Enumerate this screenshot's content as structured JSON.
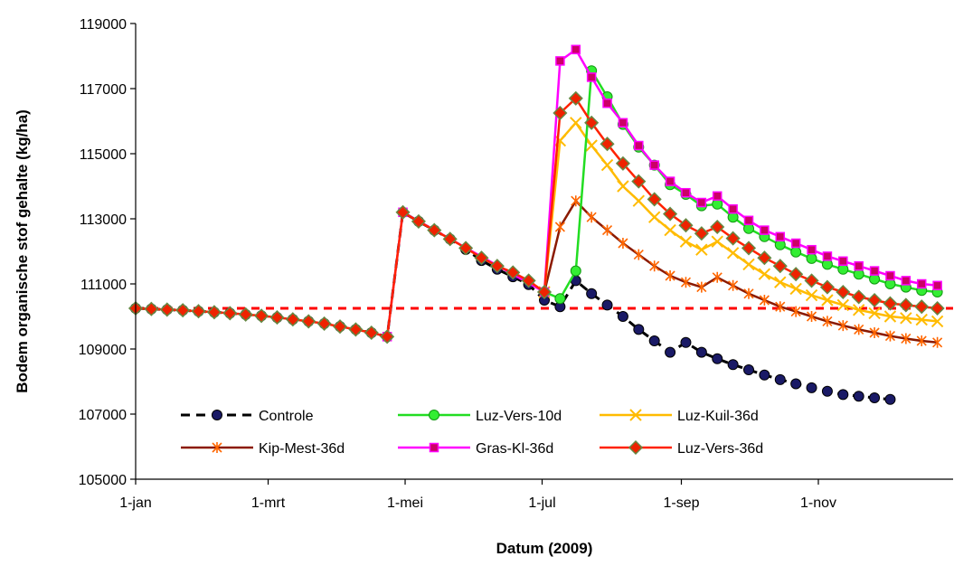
{
  "chart_data": {
    "type": "line",
    "title": "",
    "xlabel": "Datum (2009)",
    "ylabel": "Bodem organische stof gehalte (kg/ha)",
    "x_unit": "date",
    "xlim": [
      "2009-01-01",
      "2009-12-31"
    ],
    "ylim": [
      105000,
      119000
    ],
    "yticks": [
      105000,
      107000,
      109000,
      111000,
      113000,
      115000,
      117000,
      119000
    ],
    "xticks": [
      {
        "date": "2009-01-01",
        "label": "1-jan"
      },
      {
        "date": "2009-03-01",
        "label": "1-mrt"
      },
      {
        "date": "2009-05-01",
        "label": "1-mei"
      },
      {
        "date": "2009-07-01",
        "label": "1-jul"
      },
      {
        "date": "2009-09-01",
        "label": "1-sep"
      },
      {
        "date": "2009-11-01",
        "label": "1-nov"
      }
    ],
    "grid": false,
    "reference_line": {
      "y": 110250,
      "color": "#ff0000",
      "style": "dashed"
    },
    "legend_placement": "bottom-inside",
    "series": [
      {
        "name": "Controle",
        "color": "#000000",
        "marker": "circle",
        "marker_fill": "#1a1a66",
        "line": "dashed",
        "points": [
          [
            "2009-01-01",
            110250
          ],
          [
            "2009-01-08",
            110230
          ],
          [
            "2009-01-15",
            110210
          ],
          [
            "2009-01-22",
            110190
          ],
          [
            "2009-01-29",
            110160
          ],
          [
            "2009-02-05",
            110130
          ],
          [
            "2009-02-12",
            110100
          ],
          [
            "2009-02-19",
            110060
          ],
          [
            "2009-02-26",
            110020
          ],
          [
            "2009-03-05",
            109970
          ],
          [
            "2009-03-12",
            109910
          ],
          [
            "2009-03-19",
            109850
          ],
          [
            "2009-03-26",
            109780
          ],
          [
            "2009-04-02",
            109690
          ],
          [
            "2009-04-09",
            109600
          ],
          [
            "2009-04-16",
            109500
          ],
          [
            "2009-04-23",
            109380
          ],
          [
            "2009-04-30",
            113200
          ],
          [
            "2009-05-07",
            112920
          ],
          [
            "2009-05-14",
            112650
          ],
          [
            "2009-05-21",
            112380
          ],
          [
            "2009-05-28",
            112060
          ],
          [
            "2009-06-04",
            111720
          ],
          [
            "2009-06-11",
            111450
          ],
          [
            "2009-06-18",
            111220
          ],
          [
            "2009-06-25",
            110980
          ],
          [
            "2009-07-02",
            110500
          ],
          [
            "2009-07-09",
            110300
          ],
          [
            "2009-07-16",
            111100
          ],
          [
            "2009-07-23",
            110700
          ],
          [
            "2009-07-30",
            110350
          ],
          [
            "2009-08-06",
            110000
          ],
          [
            "2009-08-13",
            109600
          ],
          [
            "2009-08-20",
            109250
          ],
          [
            "2009-08-27",
            108900
          ],
          [
            "2009-09-03",
            109200
          ],
          [
            "2009-09-10",
            108900
          ],
          [
            "2009-09-17",
            108700
          ],
          [
            "2009-09-24",
            108520
          ],
          [
            "2009-10-01",
            108360
          ],
          [
            "2009-10-08",
            108200
          ],
          [
            "2009-10-15",
            108060
          ],
          [
            "2009-10-22",
            107930
          ],
          [
            "2009-10-29",
            107810
          ],
          [
            "2009-11-05",
            107700
          ],
          [
            "2009-11-12",
            107600
          ],
          [
            "2009-11-19",
            107550
          ],
          [
            "2009-11-26",
            107500
          ],
          [
            "2009-12-03",
            107450
          ]
        ]
      },
      {
        "name": "Luz-Vers-10d",
        "color": "#22dd22",
        "marker": "circle",
        "marker_fill": "#33ee33",
        "line": "solid",
        "points": [
          [
            "2009-07-02",
            110750
          ],
          [
            "2009-07-09",
            110550
          ],
          [
            "2009-07-16",
            111400
          ],
          [
            "2009-07-23",
            117550
          ],
          [
            "2009-07-30",
            116750
          ],
          [
            "2009-08-06",
            115900
          ],
          [
            "2009-08-13",
            115200
          ],
          [
            "2009-08-20",
            114650
          ],
          [
            "2009-08-27",
            114050
          ],
          [
            "2009-09-03",
            113750
          ],
          [
            "2009-09-10",
            113400
          ],
          [
            "2009-09-17",
            113450
          ],
          [
            "2009-09-24",
            113050
          ],
          [
            "2009-10-01",
            112700
          ],
          [
            "2009-10-08",
            112450
          ],
          [
            "2009-10-15",
            112200
          ],
          [
            "2009-10-22",
            111980
          ],
          [
            "2009-10-29",
            111780
          ],
          [
            "2009-11-05",
            111600
          ],
          [
            "2009-11-12",
            111450
          ],
          [
            "2009-11-19",
            111300
          ],
          [
            "2009-11-26",
            111150
          ],
          [
            "2009-12-03",
            111000
          ],
          [
            "2009-12-10",
            110900
          ],
          [
            "2009-12-17",
            110800
          ],
          [
            "2009-12-24",
            110750
          ]
        ]
      },
      {
        "name": "Luz-Kuil-36d",
        "color": "#ffbb00",
        "marker": "x",
        "marker_fill": "#ffbb00",
        "line": "solid",
        "points": [
          [
            "2009-07-02",
            110750
          ],
          [
            "2009-07-09",
            115400
          ],
          [
            "2009-07-16",
            115950
          ],
          [
            "2009-07-23",
            115250
          ],
          [
            "2009-07-30",
            114650
          ],
          [
            "2009-08-06",
            114000
          ],
          [
            "2009-08-13",
            113550
          ],
          [
            "2009-08-20",
            113050
          ],
          [
            "2009-08-27",
            112650
          ],
          [
            "2009-09-03",
            112300
          ],
          [
            "2009-09-10",
            112050
          ],
          [
            "2009-09-17",
            112300
          ],
          [
            "2009-09-24",
            111950
          ],
          [
            "2009-10-01",
            111600
          ],
          [
            "2009-10-08",
            111300
          ],
          [
            "2009-10-15",
            111050
          ],
          [
            "2009-10-22",
            110850
          ],
          [
            "2009-10-29",
            110650
          ],
          [
            "2009-11-05",
            110500
          ],
          [
            "2009-11-12",
            110350
          ],
          [
            "2009-11-19",
            110200
          ],
          [
            "2009-11-26",
            110100
          ],
          [
            "2009-12-03",
            110000
          ],
          [
            "2009-12-10",
            109950
          ],
          [
            "2009-12-17",
            109900
          ],
          [
            "2009-12-24",
            109850
          ]
        ]
      },
      {
        "name": "Kip-Mest-36d",
        "color": "#8b1a00",
        "marker": "star",
        "marker_fill": "#ff6600",
        "line": "solid",
        "points": [
          [
            "2009-07-02",
            110750
          ],
          [
            "2009-07-09",
            112750
          ],
          [
            "2009-07-16",
            113550
          ],
          [
            "2009-07-23",
            113050
          ],
          [
            "2009-07-30",
            112650
          ],
          [
            "2009-08-06",
            112250
          ],
          [
            "2009-08-13",
            111900
          ],
          [
            "2009-08-20",
            111550
          ],
          [
            "2009-08-27",
            111250
          ],
          [
            "2009-09-03",
            111050
          ],
          [
            "2009-09-10",
            110900
          ],
          [
            "2009-09-17",
            111200
          ],
          [
            "2009-09-24",
            110950
          ],
          [
            "2009-10-01",
            110700
          ],
          [
            "2009-10-08",
            110500
          ],
          [
            "2009-10-15",
            110300
          ],
          [
            "2009-10-22",
            110150
          ],
          [
            "2009-10-29",
            110000
          ],
          [
            "2009-11-05",
            109850
          ],
          [
            "2009-11-12",
            109720
          ],
          [
            "2009-11-19",
            109600
          ],
          [
            "2009-11-26",
            109500
          ],
          [
            "2009-12-03",
            109400
          ],
          [
            "2009-12-10",
            109320
          ],
          [
            "2009-12-17",
            109250
          ],
          [
            "2009-12-24",
            109200
          ]
        ]
      },
      {
        "name": "Gras-Kl-36d",
        "color": "#ff00ff",
        "marker": "square",
        "marker_fill": "#cc0066",
        "line": "solid",
        "points": [
          [
            "2009-04-23",
            109380
          ],
          [
            "2009-04-30",
            113200
          ],
          [
            "2009-07-02",
            110750
          ],
          [
            "2009-07-09",
            117850
          ],
          [
            "2009-07-16",
            118200
          ],
          [
            "2009-07-23",
            117350
          ],
          [
            "2009-07-30",
            116550
          ],
          [
            "2009-08-06",
            115950
          ],
          [
            "2009-08-13",
            115250
          ],
          [
            "2009-08-20",
            114650
          ],
          [
            "2009-08-27",
            114150
          ],
          [
            "2009-09-03",
            113800
          ],
          [
            "2009-09-10",
            113500
          ],
          [
            "2009-09-17",
            113700
          ],
          [
            "2009-09-24",
            113300
          ],
          [
            "2009-10-01",
            112950
          ],
          [
            "2009-10-08",
            112650
          ],
          [
            "2009-10-15",
            112450
          ],
          [
            "2009-10-22",
            112250
          ],
          [
            "2009-10-29",
            112050
          ],
          [
            "2009-11-05",
            111850
          ],
          [
            "2009-11-12",
            111700
          ],
          [
            "2009-11-19",
            111550
          ],
          [
            "2009-11-26",
            111400
          ],
          [
            "2009-12-03",
            111250
          ],
          [
            "2009-12-10",
            111100
          ],
          [
            "2009-12-17",
            111000
          ],
          [
            "2009-12-24",
            110950
          ]
        ]
      },
      {
        "name": "Luz-Vers-36d",
        "color": "#ff2200",
        "marker": "diamond",
        "marker_fill": "#ee2200",
        "line": "solid",
        "points": [
          [
            "2009-01-01",
            110250
          ],
          [
            "2009-01-08",
            110230
          ],
          [
            "2009-01-15",
            110210
          ],
          [
            "2009-01-22",
            110190
          ],
          [
            "2009-01-29",
            110160
          ],
          [
            "2009-02-05",
            110130
          ],
          [
            "2009-02-12",
            110100
          ],
          [
            "2009-02-19",
            110060
          ],
          [
            "2009-02-26",
            110020
          ],
          [
            "2009-03-05",
            109970
          ],
          [
            "2009-03-12",
            109910
          ],
          [
            "2009-03-19",
            109850
          ],
          [
            "2009-03-26",
            109780
          ],
          [
            "2009-04-02",
            109690
          ],
          [
            "2009-04-09",
            109600
          ],
          [
            "2009-04-16",
            109500
          ],
          [
            "2009-04-23",
            109380
          ],
          [
            "2009-04-30",
            113200
          ],
          [
            "2009-05-07",
            112920
          ],
          [
            "2009-05-14",
            112650
          ],
          [
            "2009-05-21",
            112380
          ],
          [
            "2009-05-28",
            112100
          ],
          [
            "2009-06-04",
            111800
          ],
          [
            "2009-06-11",
            111550
          ],
          [
            "2009-06-18",
            111350
          ],
          [
            "2009-06-25",
            111100
          ],
          [
            "2009-07-02",
            110750
          ],
          [
            "2009-07-09",
            116250
          ],
          [
            "2009-07-16",
            116700
          ],
          [
            "2009-07-23",
            115950
          ],
          [
            "2009-07-30",
            115300
          ],
          [
            "2009-08-06",
            114700
          ],
          [
            "2009-08-13",
            114150
          ],
          [
            "2009-08-20",
            113600
          ],
          [
            "2009-08-27",
            113150
          ],
          [
            "2009-09-03",
            112800
          ],
          [
            "2009-09-10",
            112550
          ],
          [
            "2009-09-17",
            112750
          ],
          [
            "2009-09-24",
            112400
          ],
          [
            "2009-10-01",
            112100
          ],
          [
            "2009-10-08",
            111800
          ],
          [
            "2009-10-15",
            111550
          ],
          [
            "2009-10-22",
            111300
          ],
          [
            "2009-10-29",
            111100
          ],
          [
            "2009-11-05",
            110900
          ],
          [
            "2009-11-12",
            110750
          ],
          [
            "2009-11-19",
            110600
          ],
          [
            "2009-11-26",
            110500
          ],
          [
            "2009-12-03",
            110400
          ],
          [
            "2009-12-10",
            110350
          ],
          [
            "2009-12-17",
            110300
          ],
          [
            "2009-12-24",
            110250
          ]
        ]
      }
    ]
  }
}
